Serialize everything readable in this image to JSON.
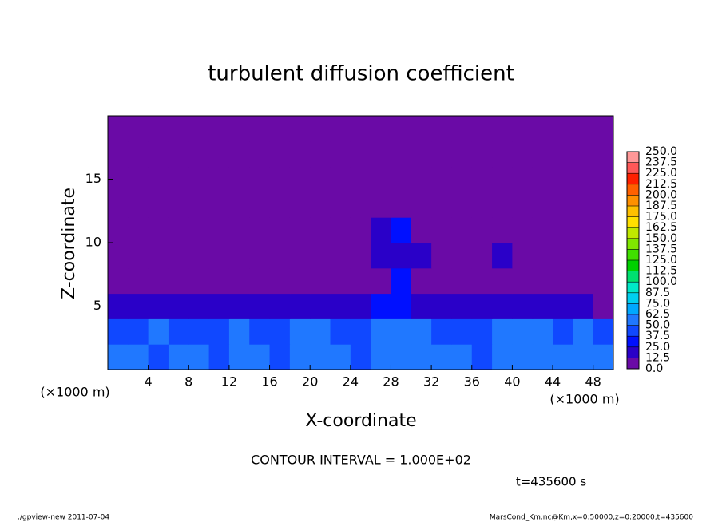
{
  "chart_data": {
    "type": "contour",
    "title": "turbulent diffusion coefficient",
    "x_label": "X-coordinate",
    "y_label": "Z-coordinate",
    "x_unit": "(×1000 m)",
    "y_unit": "(×1000 m)",
    "xlim": [
      0,
      50
    ],
    "ylim": [
      0,
      20
    ],
    "xticks": [
      4,
      8,
      12,
      16,
      20,
      24,
      28,
      32,
      36,
      40,
      44,
      48
    ],
    "yticks": [
      5,
      10,
      15
    ],
    "x": [
      1,
      3,
      5,
      7,
      9,
      11,
      13,
      15,
      17,
      19,
      21,
      23,
      25,
      27,
      29,
      31,
      33,
      35,
      37,
      39,
      41,
      43,
      45,
      47,
      49
    ],
    "z": [
      1,
      3,
      5,
      7,
      9,
      11,
      13,
      15,
      17,
      19
    ],
    "values": [
      [
        55,
        50,
        45,
        60,
        50,
        40,
        55,
        50,
        45,
        60,
        55,
        50,
        45,
        55,
        60,
        50,
        55,
        50,
        45,
        55,
        60,
        55,
        50,
        55,
        50
      ],
      [
        45,
        40,
        50,
        45,
        40,
        45,
        50,
        40,
        45,
        50,
        55,
        45,
        45,
        50,
        55,
        50,
        45,
        40,
        45,
        50,
        55,
        50,
        45,
        50,
        45
      ],
      [
        20,
        15,
        20,
        15,
        15,
        15,
        15,
        15,
        20,
        15,
        15,
        20,
        20,
        25,
        30,
        20,
        15,
        15,
        15,
        15,
        15,
        15,
        15,
        15,
        10
      ],
      [
        5,
        5,
        5,
        5,
        5,
        5,
        5,
        5,
        5,
        5,
        5,
        5,
        5,
        10,
        25,
        10,
        5,
        5,
        5,
        5,
        5,
        5,
        5,
        5,
        5
      ],
      [
        10,
        5,
        5,
        5,
        5,
        10,
        5,
        5,
        5,
        5,
        5,
        10,
        5,
        15,
        20,
        15,
        5,
        5,
        10,
        15,
        10,
        5,
        5,
        5,
        10
      ],
      [
        5,
        5,
        10,
        5,
        5,
        5,
        5,
        5,
        5,
        5,
        5,
        5,
        10,
        15,
        25,
        10,
        5,
        10,
        5,
        10,
        5,
        5,
        5,
        10,
        5
      ],
      [
        0,
        5,
        0,
        0,
        5,
        0,
        5,
        5,
        0,
        0,
        5,
        0,
        5,
        0,
        5,
        0,
        0,
        0,
        5,
        0,
        0,
        0,
        0,
        0,
        0
      ],
      [
        0,
        0,
        0,
        0,
        0,
        0,
        5,
        0,
        0,
        0,
        5,
        0,
        0,
        0,
        0,
        0,
        0,
        0,
        0,
        0,
        0,
        0,
        0,
        0,
        0
      ],
      [
        0,
        0,
        0,
        0,
        0,
        0,
        0,
        0,
        0,
        0,
        0,
        0,
        0,
        0,
        0,
        0,
        0,
        0,
        0,
        0,
        0,
        0,
        0,
        0,
        0
      ],
      [
        0,
        0,
        0,
        0,
        0,
        0,
        0,
        0,
        0,
        0,
        0,
        0,
        0,
        0,
        0,
        0,
        0,
        0,
        0,
        0,
        0,
        0,
        0,
        0,
        0
      ]
    ],
    "colorbar": {
      "ticks": [
        {
          "value": 0,
          "label": "0.0"
        },
        {
          "value": 12.5,
          "label": "12.5"
        },
        {
          "value": 25,
          "label": "25.0"
        },
        {
          "value": 37.5,
          "label": "37.5"
        },
        {
          "value": 50,
          "label": "50.0"
        },
        {
          "value": 62.5,
          "label": "62.5"
        },
        {
          "value": 75,
          "label": "75.0"
        },
        {
          "value": 87.5,
          "label": "87.5"
        },
        {
          "value": 100,
          "label": "100.0"
        },
        {
          "value": 112.5,
          "label": "112.5"
        },
        {
          "value": 125,
          "label": "125.0"
        },
        {
          "value": 137.5,
          "label": "137.5"
        },
        {
          "value": 150,
          "label": "150.0"
        },
        {
          "value": 162.5,
          "label": "162.5"
        },
        {
          "value": 175,
          "label": "175.0"
        },
        {
          "value": 187.5,
          "label": "187.5"
        },
        {
          "value": 200,
          "label": "200.0"
        },
        {
          "value": 212.5,
          "label": "212.5"
        },
        {
          "value": 225,
          "label": "225.0"
        },
        {
          "value": 237.5,
          "label": "237.5"
        },
        {
          "value": 250,
          "label": "250.0"
        }
      ],
      "colors": [
        "#6a0aa6",
        "#2a00c8",
        "#0010ff",
        "#1048ff",
        "#2078ff",
        "#00a8ff",
        "#00d0f0",
        "#00e8c8",
        "#00e070",
        "#00d000",
        "#40e000",
        "#80e800",
        "#c0e800",
        "#ffe000",
        "#ffc000",
        "#ff9000",
        "#ff6000",
        "#ff2000",
        "#ff5858",
        "#ff9898"
      ]
    },
    "contour_interval": "CONTOUR INTERVAL = 1.000E+02",
    "time_label": "t=435600 s",
    "footer_left": "./gpview-new  2011-07-04",
    "footer_right": "MarsCond_Km.nc@Km,x=0:50000,z=0:20000,t=435600"
  }
}
